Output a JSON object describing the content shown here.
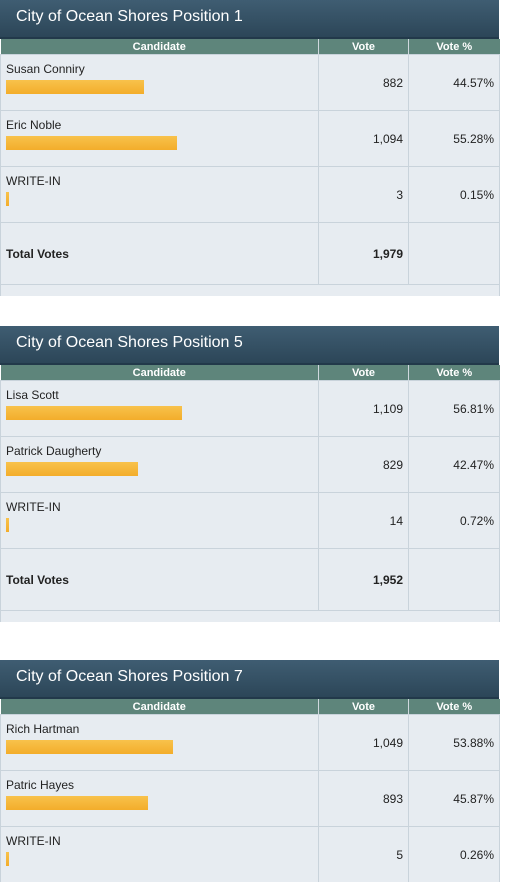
{
  "races": [
    {
      "title": "City of Ocean Shores Position 1",
      "headers": {
        "candidate": "Candidate",
        "vote": "Vote",
        "pct": "Vote %"
      },
      "candidates": [
        {
          "name": "Susan Conniry",
          "votes": "882",
          "pct": "44.57%",
          "share": 0.4457
        },
        {
          "name": "Eric Noble",
          "votes": "1,094",
          "pct": "55.28%",
          "share": 0.5528
        },
        {
          "name": "WRITE-IN",
          "votes": "3",
          "pct": "0.15%",
          "share": 0.0015
        }
      ],
      "total_label": "Total Votes",
      "total_votes": "1,979"
    },
    {
      "title": "City of Ocean Shores Position 5",
      "headers": {
        "candidate": "Candidate",
        "vote": "Vote",
        "pct": "Vote %"
      },
      "candidates": [
        {
          "name": "Lisa Scott",
          "votes": "1,109",
          "pct": "56.81%",
          "share": 0.5681
        },
        {
          "name": "Patrick Daugherty",
          "votes": "829",
          "pct": "42.47%",
          "share": 0.4247
        },
        {
          "name": "WRITE-IN",
          "votes": "14",
          "pct": "0.72%",
          "share": 0.0072
        }
      ],
      "total_label": "Total Votes",
      "total_votes": "1,952"
    },
    {
      "title": "City of Ocean Shores Position 7",
      "headers": {
        "candidate": "Candidate",
        "vote": "Vote",
        "pct": "Vote %"
      },
      "candidates": [
        {
          "name": "Rich Hartman",
          "votes": "1,049",
          "pct": "53.88%",
          "share": 0.5388
        },
        {
          "name": "Patric Hayes",
          "votes": "893",
          "pct": "45.87%",
          "share": 0.4587
        },
        {
          "name": "WRITE-IN",
          "votes": "5",
          "pct": "0.26%",
          "share": 0.0026
        }
      ]
    }
  ],
  "colors": {
    "bar": "#f5b536",
    "header": "#5e857b",
    "title_bg": "#334f63"
  }
}
